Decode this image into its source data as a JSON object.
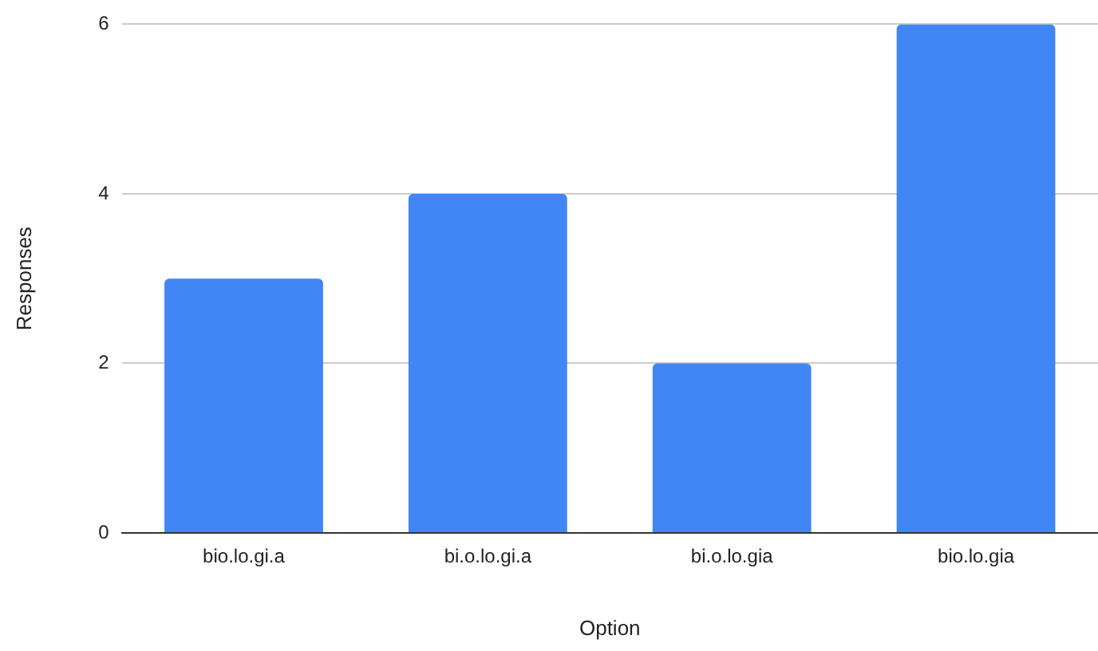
{
  "chart_data": {
    "type": "bar",
    "xlabel": "Option",
    "ylabel": "Responses",
    "categories": [
      "bio.lo.gi.a",
      "bi.o.lo.gi.a",
      "bi.o.lo.gia",
      "bio.lo.gia"
    ],
    "values": [
      3,
      4,
      2,
      6
    ],
    "color": "#4285f4",
    "ylim": [
      0,
      6
    ],
    "yticks": [
      0,
      2,
      4,
      6
    ],
    "grid": "y"
  }
}
